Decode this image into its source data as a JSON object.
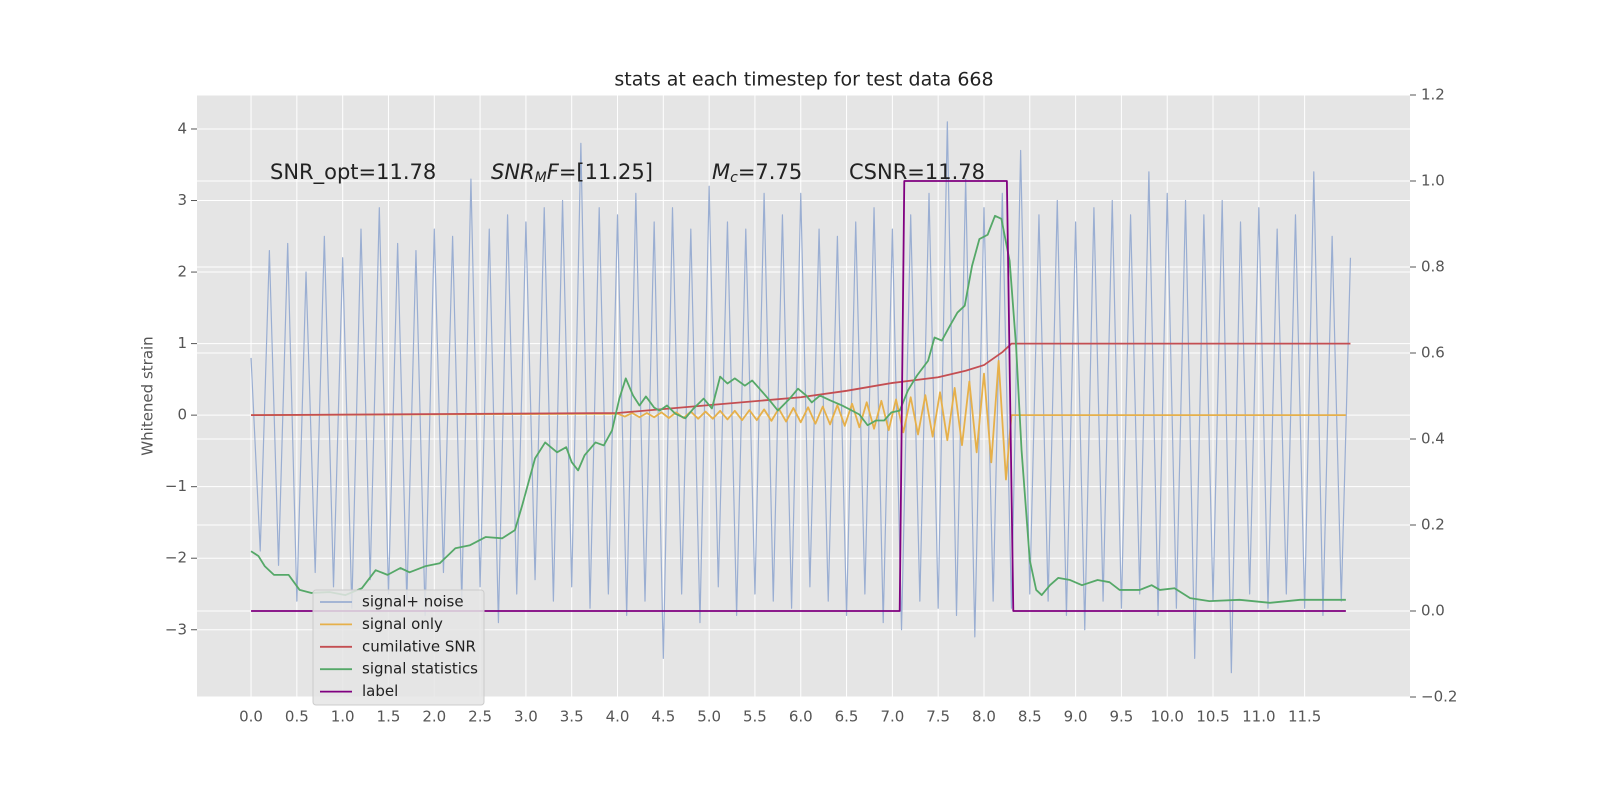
{
  "chart_data": {
    "type": "line",
    "title": "stats at each timestep for test data 668",
    "y_label": "Whitened strain",
    "xlim": [
      -0.59,
      12.65
    ],
    "ylim": [
      -3.94,
      4.475
    ],
    "y2lim": [
      -0.2,
      1.2
    ],
    "xticks": [
      {
        "value": 0,
        "label": "0.0"
      },
      0.5,
      {
        "value": 1,
        "label": "1.0"
      },
      1.5,
      {
        "value": 2,
        "label": "2.0"
      },
      2.5,
      {
        "value": 3,
        "label": "3.0"
      },
      3.5,
      {
        "value": 4,
        "label": "4.0"
      },
      4.5,
      {
        "value": 5,
        "label": "5.0"
      },
      5.5,
      {
        "value": 6,
        "label": "6.0"
      },
      6.5,
      {
        "value": 7,
        "label": "7.0"
      },
      7.5,
      {
        "value": 8,
        "label": "8.0"
      },
      8.5,
      {
        "value": 9,
        "label": "9.0"
      },
      9.5,
      {
        "value": 10,
        "label": "10.0"
      },
      10.5,
      {
        "value": 11,
        "label": "11.0"
      },
      11.5
    ],
    "yticks": [
      {
        "value": -3,
        "label": "−3"
      },
      {
        "value": -2,
        "label": "−2"
      },
      {
        "value": -1,
        "label": "−1"
      },
      0,
      1,
      2,
      3,
      4
    ],
    "y2ticks": [
      {
        "value": -0.2,
        "label": "−0.2"
      },
      {
        "value": 0,
        "label": "0.0"
      },
      0.2,
      0.4,
      0.6,
      0.8,
      {
        "value": 1,
        "label": "1.0"
      },
      1.2
    ],
    "grid": true,
    "legend": "lower left",
    "annotations": [
      [
        {
          "text": "SNR_opt=11.78"
        }
      ],
      [
        {
          "text": "SNR",
          "italic": true
        },
        {
          "text": "M",
          "italic": true,
          "sub": true
        },
        {
          "text": "F",
          "italic": true
        },
        {
          "text": "=[11.25]"
        }
      ],
      [
        {
          "text": "M",
          "italic": true
        },
        {
          "text": "c",
          "italic": true,
          "sub": true
        },
        {
          "text": "=7.75"
        }
      ],
      [
        {
          "text": "CSNR=11.78"
        }
      ]
    ],
    "series": [
      {
        "name": "signal+ noise",
        "color": "#9aaed2",
        "axis": "y",
        "x": [
          0,
          0.1,
          0.2,
          0.3,
          0.4,
          0.5,
          0.6,
          0.7,
          0.8,
          0.9,
          1.0,
          1.1,
          1.2,
          1.3,
          1.4,
          1.5,
          1.6,
          1.7,
          1.8,
          1.9,
          2.0,
          2.1,
          2.2,
          2.3,
          2.4,
          2.5,
          2.6,
          2.7,
          2.8,
          2.9,
          3.0,
          3.1,
          3.2,
          3.3,
          3.4,
          3.5,
          3.6,
          3.7,
          3.8,
          3.9,
          4.0,
          4.1,
          4.2,
          4.3,
          4.4,
          4.5,
          4.6,
          4.7,
          4.8,
          4.9,
          5.0,
          5.1,
          5.2,
          5.3,
          5.4,
          5.5,
          5.6,
          5.7,
          5.8,
          5.9,
          6.0,
          6.1,
          6.2,
          6.3,
          6.4,
          6.5,
          6.6,
          6.7,
          6.8,
          6.9,
          7.0,
          7.1,
          7.2,
          7.3,
          7.4,
          7.5,
          7.6,
          7.7,
          7.8,
          7.9,
          8.0,
          8.1,
          8.2,
          8.3,
          8.4,
          8.5,
          8.6,
          8.7,
          8.8,
          8.9,
          9.0,
          9.1,
          9.2,
          9.3,
          9.4,
          9.5,
          9.6,
          9.7,
          9.8,
          9.9,
          10.0,
          10.1,
          10.2,
          10.3,
          10.4,
          10.5,
          10.6,
          10.7,
          10.8,
          10.9,
          11.0,
          11.1,
          11.2,
          11.3,
          11.4,
          11.5,
          11.6,
          11.7,
          11.8,
          11.9,
          12.0
        ],
        "values": [
          0.8,
          -1.9,
          2.3,
          -2.1,
          2.4,
          -2.6,
          2.0,
          -2.2,
          2.5,
          -2.4,
          2.2,
          -2.7,
          2.6,
          -2.3,
          2.9,
          -2.5,
          2.4,
          -2.6,
          2.3,
          -2.8,
          2.6,
          -2.2,
          2.5,
          -2.6,
          3.3,
          -2.4,
          2.6,
          -2.9,
          2.8,
          -2.5,
          2.7,
          -2.3,
          2.9,
          -2.6,
          3.0,
          -2.4,
          3.8,
          -2.7,
          2.9,
          -2.5,
          2.8,
          -2.8,
          3.1,
          -2.6,
          2.7,
          -3.4,
          2.9,
          -2.5,
          2.6,
          -2.9,
          3.2,
          -2.4,
          2.7,
          -2.8,
          2.6,
          -2.5,
          3.1,
          -2.6,
          2.8,
          -2.7,
          3.1,
          -2.4,
          2.6,
          -2.6,
          2.5,
          -2.8,
          2.7,
          -2.5,
          2.9,
          -2.9,
          2.6,
          -3.0,
          2.8,
          -2.6,
          3.1,
          -2.7,
          4.1,
          -2.8,
          3.3,
          -3.1,
          2.9,
          -2.6,
          3.1,
          -2.7,
          3.7,
          -2.5,
          2.8,
          -2.6,
          3.0,
          -2.8,
          2.7,
          -3.0,
          2.9,
          -2.6,
          3.0,
          -2.7,
          2.8,
          -2.5,
          3.4,
          -2.8,
          3.1,
          -2.7,
          3.0,
          -3.4,
          2.8,
          -2.6,
          3.0,
          -3.6,
          2.7,
          -2.5,
          2.9,
          -2.7,
          2.6,
          -2.5,
          2.8,
          -2.7,
          3.4,
          -2.8,
          2.5,
          -2.6,
          2.2
        ]
      },
      {
        "name": "signal only",
        "color": "#e6b04a",
        "axis": "y",
        "x": [
          0,
          4.0,
          4.08,
          4.16,
          4.24,
          4.32,
          4.4,
          4.48,
          4.56,
          4.64,
          4.72,
          4.8,
          4.88,
          4.96,
          5.04,
          5.12,
          5.2,
          5.28,
          5.36,
          5.44,
          5.52,
          5.6,
          5.68,
          5.76,
          5.84,
          5.92,
          6.0,
          6.08,
          6.16,
          6.24,
          6.32,
          6.4,
          6.48,
          6.56,
          6.64,
          6.72,
          6.8,
          6.88,
          6.96,
          7.04,
          7.12,
          7.2,
          7.28,
          7.36,
          7.44,
          7.52,
          7.6,
          7.68,
          7.76,
          7.84,
          7.92,
          8.0,
          8.08,
          8.16,
          8.24,
          8.3,
          11.95
        ],
        "values": [
          0,
          0.02,
          -0.02,
          0.03,
          -0.03,
          0.03,
          -0.03,
          0.04,
          -0.04,
          0.04,
          -0.04,
          0.05,
          -0.05,
          0.05,
          -0.05,
          0.06,
          -0.06,
          0.06,
          -0.07,
          0.07,
          -0.07,
          0.08,
          -0.08,
          0.09,
          -0.09,
          0.1,
          -0.1,
          0.11,
          -0.12,
          0.12,
          -0.13,
          0.14,
          -0.15,
          0.16,
          -0.17,
          0.18,
          -0.19,
          0.2,
          -0.21,
          0.22,
          -0.24,
          0.25,
          -0.27,
          0.28,
          -0.3,
          0.32,
          -0.35,
          0.38,
          -0.42,
          0.47,
          -0.52,
          0.58,
          -0.66,
          0.76,
          -0.9,
          0,
          0
        ]
      },
      {
        "name": "cumilative SNR",
        "color": "#c44e52",
        "axis": "y",
        "x": [
          0,
          4,
          5,
          6,
          6.5,
          7,
          7.5,
          7.8,
          8.0,
          8.2,
          8.3,
          12.0
        ],
        "values": [
          0,
          0.03,
          0.14,
          0.25,
          0.34,
          0.45,
          0.53,
          0.62,
          0.7,
          0.88,
          1.0,
          1.0
        ]
      },
      {
        "name": "signal statistics",
        "color": "#55a868",
        "axis": "y2",
        "x": [
          0.0,
          0.08,
          0.15,
          0.25,
          0.41,
          0.53,
          0.66,
          0.86,
          1.03,
          1.21,
          1.36,
          1.49,
          1.63,
          1.73,
          1.9,
          2.06,
          2.23,
          2.39,
          2.56,
          2.74,
          2.88,
          2.96,
          3.1,
          3.21,
          3.34,
          3.44,
          3.5,
          3.57,
          3.64,
          3.76,
          3.85,
          3.94,
          4.02,
          4.09,
          4.17,
          4.24,
          4.31,
          4.4,
          4.46,
          4.54,
          4.63,
          4.74,
          4.83,
          4.94,
          5.03,
          5.12,
          5.2,
          5.28,
          5.39,
          5.47,
          5.55,
          5.66,
          5.75,
          5.88,
          5.97,
          6.06,
          6.12,
          6.21,
          6.32,
          6.45,
          6.56,
          6.64,
          6.73,
          6.82,
          6.91,
          6.99,
          7.08,
          7.17,
          7.27,
          7.39,
          7.46,
          7.54,
          7.63,
          7.71,
          7.79,
          7.87,
          7.95,
          8.04,
          8.12,
          8.19,
          8.28,
          8.35,
          8.41,
          8.5,
          8.57,
          8.63,
          8.72,
          8.81,
          8.94,
          9.07,
          9.24,
          9.37,
          9.48,
          9.7,
          9.83,
          9.92,
          10.08,
          10.25,
          10.46,
          10.79,
          11.12,
          11.45,
          11.77,
          11.95
        ],
        "values": [
          0.139,
          0.128,
          0.104,
          0.084,
          0.084,
          0.049,
          0.042,
          0.044,
          0.037,
          0.053,
          0.095,
          0.084,
          0.1,
          0.09,
          0.104,
          0.111,
          0.146,
          0.153,
          0.172,
          0.169,
          0.188,
          0.246,
          0.355,
          0.392,
          0.369,
          0.381,
          0.346,
          0.327,
          0.362,
          0.392,
          0.385,
          0.42,
          0.494,
          0.541,
          0.501,
          0.478,
          0.499,
          0.473,
          0.466,
          0.478,
          0.459,
          0.448,
          0.471,
          0.494,
          0.471,
          0.545,
          0.529,
          0.541,
          0.524,
          0.536,
          0.517,
          0.49,
          0.466,
          0.494,
          0.517,
          0.501,
          0.485,
          0.501,
          0.49,
          0.478,
          0.466,
          0.457,
          0.432,
          0.443,
          0.443,
          0.462,
          0.466,
          0.513,
          0.548,
          0.582,
          0.636,
          0.629,
          0.664,
          0.694,
          0.71,
          0.803,
          0.865,
          0.875,
          0.919,
          0.912,
          0.814,
          0.617,
          0.374,
          0.118,
          0.049,
          0.037,
          0.06,
          0.077,
          0.072,
          0.06,
          0.072,
          0.067,
          0.049,
          0.049,
          0.06,
          0.049,
          0.053,
          0.03,
          0.023,
          0.026,
          0.019,
          0.026,
          0.026,
          0.026
        ]
      },
      {
        "name": "label",
        "color": "#800080",
        "axis": "y2",
        "x": [
          0,
          7.08,
          7.13,
          8.25,
          8.32,
          11.95
        ],
        "values": [
          0,
          0,
          1,
          1,
          0,
          0
        ]
      }
    ]
  }
}
